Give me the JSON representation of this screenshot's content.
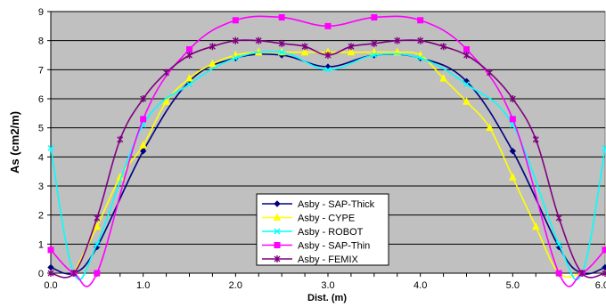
{
  "chart_data": {
    "type": "line",
    "title": "",
    "xlabel": "Dist. (m)",
    "ylabel": "As (cm2/m)",
    "xlim": [
      0,
      6
    ],
    "ylim": [
      0,
      9
    ],
    "x_ticks": [
      "0.0",
      "1.0",
      "2.0",
      "3.0",
      "4.0",
      "5.0",
      "6.0"
    ],
    "y_ticks": [
      "0",
      "1",
      "2",
      "3",
      "4",
      "5",
      "6",
      "7",
      "8",
      "9"
    ],
    "grid": "horizontal",
    "plot_background": "#c0c0c0",
    "legend_position": "bottom-center inside plot",
    "series": [
      {
        "name": "Asby - SAP-Thick",
        "color": "#000080",
        "marker": "diamond",
        "x": [
          0,
          0.25,
          0.5,
          1.0,
          1.5,
          2.0,
          2.5,
          3.0,
          3.5,
          4.0,
          4.5,
          5.0,
          5.5,
          5.75,
          6.0
        ],
        "y": [
          0.2,
          0.0,
          0.9,
          4.2,
          6.6,
          7.4,
          7.5,
          7.1,
          7.5,
          7.4,
          6.6,
          4.2,
          0.9,
          0.0,
          0.2
        ]
      },
      {
        "name": "Asby - CYPE",
        "color": "#ffff00",
        "marker": "triangle",
        "x": [
          0.25,
          0.5,
          0.75,
          1.0,
          1.25,
          1.5,
          1.75,
          2.0,
          2.25,
          2.5,
          2.75,
          3.0,
          3.25,
          3.5,
          3.75,
          4.0,
          4.25,
          4.5,
          4.75,
          5.0,
          5.25,
          5.5,
          5.75
        ],
        "y": [
          0.0,
          1.6,
          3.3,
          4.4,
          5.9,
          6.7,
          7.2,
          7.5,
          7.6,
          7.6,
          7.6,
          7.6,
          7.6,
          7.6,
          7.6,
          7.5,
          6.7,
          5.9,
          5.0,
          3.3,
          1.6,
          0.0,
          0.0
        ]
      },
      {
        "name": "Asby - ROBOT",
        "color": "#00ffff",
        "marker": "x",
        "x": [
          0,
          0.25,
          0.5,
          1.0,
          1.5,
          2.0,
          2.5,
          3.0,
          3.5,
          4.0,
          4.5,
          5.0,
          5.5,
          5.75,
          6.0
        ],
        "y": [
          4.3,
          0.0,
          1.0,
          5.1,
          6.5,
          7.4,
          7.6,
          7.0,
          7.5,
          7.4,
          6.5,
          5.1,
          1.0,
          0.0,
          4.3
        ]
      },
      {
        "name": "Asby - SAP-Thin",
        "color": "#ff00ff",
        "marker": "square",
        "x": [
          0,
          0.25,
          0.5,
          1.0,
          1.5,
          2.0,
          2.5,
          3.0,
          3.5,
          4.0,
          4.5,
          5.0,
          5.5,
          5.75,
          6.0
        ],
        "y": [
          0.8,
          0.0,
          0.0,
          5.3,
          7.7,
          8.7,
          8.8,
          8.5,
          8.8,
          8.7,
          7.7,
          5.3,
          0.0,
          0.0,
          0.8
        ]
      },
      {
        "name": "Asby - FEMIX",
        "color": "#800080",
        "marker": "asterisk",
        "x": [
          0,
          0.25,
          0.5,
          0.75,
          1.0,
          1.25,
          1.5,
          1.75,
          2.0,
          2.25,
          2.5,
          2.75,
          3.0,
          3.25,
          3.5,
          3.75,
          4.0,
          4.25,
          4.5,
          4.75,
          5.0,
          5.25,
          5.5,
          5.75,
          6.0
        ],
        "y": [
          0.0,
          0.0,
          1.9,
          4.6,
          6.0,
          6.9,
          7.5,
          7.8,
          8.0,
          8.0,
          7.9,
          7.8,
          7.5,
          7.8,
          7.9,
          8.0,
          8.0,
          7.8,
          7.5,
          6.9,
          6.0,
          4.6,
          1.9,
          0.0,
          0.0
        ]
      }
    ]
  }
}
